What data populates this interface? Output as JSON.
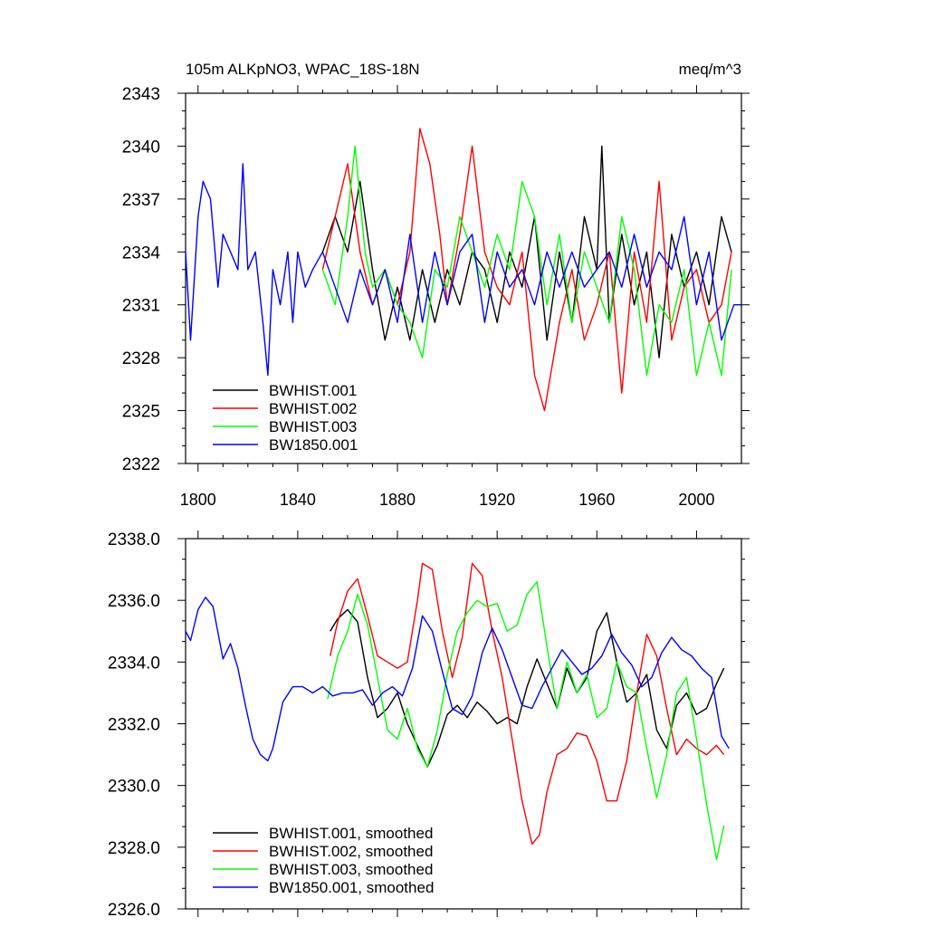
{
  "chart_data": [
    {
      "type": "line",
      "title": "105m ALKpNO3, WPAC_18S-18N",
      "units": "meq/m^3",
      "xlim": [
        1795,
        2018
      ],
      "ylim": [
        2322,
        2343
      ],
      "xticks": [
        1800,
        1840,
        1880,
        1920,
        1960,
        2000
      ],
      "yticks": [
        2322,
        2325,
        2328,
        2331,
        2334,
        2337,
        2340,
        2343
      ],
      "yticklabels": [
        "2322",
        "2325",
        "2328",
        "2331",
        "2334",
        "2337",
        "2340",
        "2343"
      ],
      "legend_position": "lower-left",
      "series": [
        {
          "name": "BWHIST.001",
          "color": "#000000",
          "x": [
            1850,
            1855,
            1860,
            1865,
            1870,
            1875,
            1880,
            1885,
            1890,
            1895,
            1900,
            1905,
            1910,
            1915,
            1920,
            1925,
            1930,
            1935,
            1940,
            1945,
            1950,
            1955,
            1960,
            1962,
            1965,
            1970,
            1975,
            1980,
            1985,
            1990,
            1995,
            2000,
            2005,
            2010,
            2014
          ],
          "y": [
            2334,
            2336,
            2334,
            2338,
            2333,
            2329,
            2332,
            2329,
            2333,
            2330,
            2333,
            2331,
            2334,
            2333,
            2330,
            2334,
            2332,
            2336,
            2329,
            2334,
            2330,
            2336,
            2333,
            2340,
            2330,
            2335,
            2331,
            2334,
            2328,
            2335,
            2332,
            2334,
            2331,
            2336,
            2334
          ]
        },
        {
          "name": "BWHIST.002",
          "color": "#ff0000",
          "x": [
            1850,
            1855,
            1860,
            1865,
            1870,
            1875,
            1880,
            1885,
            1889,
            1893,
            1897,
            1900,
            1905,
            1910,
            1915,
            1920,
            1925,
            1930,
            1935,
            1939,
            1945,
            1950,
            1955,
            1960,
            1965,
            1970,
            1975,
            1980,
            1985,
            1990,
            1995,
            2000,
            2005,
            2010,
            2014
          ],
          "y": [
            2333,
            2336,
            2339,
            2334,
            2331,
            2333,
            2331,
            2334,
            2341,
            2339,
            2335,
            2331,
            2335,
            2340,
            2334,
            2332,
            2331,
            2334,
            2327,
            2325,
            2330,
            2333,
            2329,
            2331,
            2334,
            2326,
            2334,
            2330,
            2338,
            2329,
            2332,
            2333,
            2330,
            2331,
            2334
          ]
        },
        {
          "name": "BWHIST.003",
          "color": "#00ff00",
          "x": [
            1850,
            1855,
            1860,
            1863,
            1867,
            1870,
            1875,
            1880,
            1885,
            1890,
            1895,
            1900,
            1905,
            1910,
            1915,
            1920,
            1925,
            1930,
            1935,
            1940,
            1945,
            1950,
            1955,
            1960,
            1965,
            1970,
            1975,
            1980,
            1985,
            1990,
            1995,
            2000,
            2005,
            2010,
            2014
          ],
          "y": [
            2333,
            2331,
            2336,
            2340,
            2334,
            2332,
            2333,
            2331,
            2330,
            2328,
            2333,
            2332,
            2336,
            2334,
            2332,
            2335,
            2333,
            2338,
            2336,
            2331,
            2335,
            2330,
            2334,
            2332,
            2330,
            2336,
            2333,
            2327,
            2331,
            2330,
            2333,
            2327,
            2330,
            2327,
            2333
          ]
        },
        {
          "name": "BW1850.001",
          "color": "#0000ff",
          "x": [
            1795,
            1797,
            1800,
            1802,
            1805,
            1808,
            1810,
            1813,
            1816,
            1818,
            1820,
            1823,
            1826,
            1828,
            1830,
            1833,
            1836,
            1838,
            1840,
            1843,
            1846,
            1850,
            1855,
            1860,
            1865,
            1870,
            1875,
            1880,
            1885,
            1890,
            1895,
            1900,
            1905,
            1910,
            1915,
            1920,
            1925,
            1930,
            1935,
            1940,
            1945,
            1950,
            1955,
            1960,
            1965,
            1970,
            1975,
            1980,
            1985,
            1990,
            1995,
            2000,
            2005,
            2010,
            2015,
            2018
          ],
          "y": [
            2334,
            2329,
            2336,
            2338,
            2337,
            2332,
            2335,
            2334,
            2333,
            2339,
            2333,
            2334,
            2330,
            2327,
            2333,
            2331,
            2334,
            2330,
            2334,
            2332,
            2333,
            2334,
            2332,
            2330,
            2333,
            2331,
            2333,
            2330,
            2335,
            2330,
            2334,
            2331,
            2334,
            2335,
            2330,
            2334,
            2332,
            2333,
            2331,
            2334,
            2332,
            2334,
            2332,
            2333,
            2334,
            2332,
            2335,
            2332,
            2334,
            2333,
            2336,
            2331,
            2334,
            2329,
            2331,
            2331
          ]
        }
      ]
    },
    {
      "type": "line",
      "title": "",
      "xlim": [
        1795,
        2018
      ],
      "ylim": [
        2326.0,
        2338.0
      ],
      "xticks": [
        1800,
        1840,
        1880,
        1920,
        1960,
        2000
      ],
      "yticks": [
        2326.0,
        2328.0,
        2330.0,
        2332.0,
        2334.0,
        2336.0,
        2338.0
      ],
      "yticklabels": [
        "2326.0",
        "2328.0",
        "2330.0",
        "2332.0",
        "2334.0",
        "2336.0",
        "2338.0"
      ],
      "legend_position": "lower-left",
      "series": [
        {
          "name": "BWHIST.001, smoothed",
          "color": "#000000",
          "x": [
            1853,
            1856,
            1860,
            1864,
            1868,
            1872,
            1876,
            1880,
            1884,
            1888,
            1892,
            1896,
            1900,
            1904,
            1908,
            1912,
            1916,
            1920,
            1924,
            1928,
            1932,
            1936,
            1940,
            1944,
            1948,
            1952,
            1956,
            1960,
            1964,
            1968,
            1972,
            1976,
            1980,
            1984,
            1988,
            1992,
            1996,
            2000,
            2004,
            2008,
            2011
          ],
          "y": [
            2335.0,
            2335.4,
            2335.7,
            2335.3,
            2333.5,
            2332.2,
            2332.5,
            2333.0,
            2332.0,
            2331.3,
            2330.6,
            2331.3,
            2332.3,
            2332.6,
            2332.2,
            2332.7,
            2332.4,
            2332.0,
            2332.2,
            2332.0,
            2333.2,
            2334.1,
            2333.3,
            2332.5,
            2333.8,
            2333.0,
            2333.5,
            2335.0,
            2335.6,
            2334.0,
            2332.7,
            2333.0,
            2333.6,
            2331.8,
            2331.2,
            2332.6,
            2333.0,
            2332.3,
            2332.5,
            2333.3,
            2333.8
          ]
        },
        {
          "name": "BWHIST.002, smoothed",
          "color": "#ff0000",
          "x": [
            1853,
            1856,
            1860,
            1864,
            1868,
            1872,
            1876,
            1880,
            1884,
            1888,
            1890,
            1894,
            1898,
            1902,
            1906,
            1910,
            1914,
            1918,
            1922,
            1926,
            1930,
            1934,
            1937,
            1940,
            1944,
            1948,
            1952,
            1956,
            1960,
            1964,
            1968,
            1972,
            1976,
            1980,
            1984,
            1988,
            1992,
            1996,
            2000,
            2004,
            2008,
            2011
          ],
          "y": [
            2334.2,
            2335.3,
            2336.3,
            2336.7,
            2335.5,
            2334.2,
            2334.0,
            2333.8,
            2334.0,
            2336.0,
            2337.2,
            2337.0,
            2335.0,
            2333.5,
            2334.8,
            2337.2,
            2336.8,
            2335.0,
            2333.5,
            2331.5,
            2329.5,
            2328.1,
            2328.4,
            2329.8,
            2331.0,
            2331.2,
            2331.7,
            2331.6,
            2330.8,
            2329.5,
            2329.5,
            2330.8,
            2333.0,
            2334.9,
            2334.2,
            2332.5,
            2331.0,
            2331.5,
            2331.2,
            2331.0,
            2331.3,
            2331.0
          ]
        },
        {
          "name": "BWHIST.003, smoothed",
          "color": "#00ff00",
          "x": [
            1852,
            1856,
            1860,
            1864,
            1868,
            1872,
            1876,
            1880,
            1884,
            1888,
            1892,
            1896,
            1900,
            1904,
            1908,
            1912,
            1916,
            1920,
            1924,
            1928,
            1932,
            1936,
            1940,
            1944,
            1948,
            1952,
            1956,
            1960,
            1964,
            1968,
            1972,
            1976,
            1980,
            1984,
            1988,
            1992,
            1996,
            2000,
            2004,
            2008,
            2011
          ],
          "y": [
            2332.8,
            2334.2,
            2335.0,
            2336.2,
            2335.2,
            2333.5,
            2331.8,
            2331.5,
            2332.5,
            2331.2,
            2330.6,
            2331.8,
            2333.6,
            2335.0,
            2335.6,
            2336.0,
            2335.8,
            2335.9,
            2335.0,
            2335.2,
            2336.2,
            2336.6,
            2334.5,
            2332.5,
            2334.0,
            2333.0,
            2333.6,
            2332.2,
            2332.5,
            2334.0,
            2333.2,
            2333.0,
            2331.2,
            2329.6,
            2331.0,
            2333.0,
            2333.5,
            2331.5,
            2329.4,
            2327.6,
            2328.7
          ]
        },
        {
          "name": "BW1850.001, smoothed",
          "color": "#0000ff",
          "x": [
            1795,
            1797,
            1800,
            1803,
            1806,
            1810,
            1813,
            1816,
            1819,
            1822,
            1825,
            1828,
            1830,
            1834,
            1838,
            1842,
            1846,
            1850,
            1854,
            1858,
            1862,
            1866,
            1870,
            1874,
            1878,
            1882,
            1886,
            1890,
            1894,
            1898,
            1902,
            1906,
            1910,
            1914,
            1918,
            1922,
            1926,
            1930,
            1934,
            1938,
            1942,
            1946,
            1950,
            1954,
            1958,
            1962,
            1966,
            1970,
            1974,
            1978,
            1982,
            1986,
            1990,
            1994,
            1998,
            2002,
            2006,
            2010,
            2013
          ],
          "y": [
            2335.0,
            2334.7,
            2335.7,
            2336.1,
            2335.8,
            2334.1,
            2334.6,
            2333.8,
            2332.6,
            2331.5,
            2331.0,
            2330.8,
            2331.2,
            2332.7,
            2333.2,
            2333.2,
            2333.0,
            2333.2,
            2332.9,
            2333.0,
            2333.0,
            2333.1,
            2332.6,
            2333.0,
            2333.2,
            2332.9,
            2333.8,
            2335.5,
            2335.0,
            2333.7,
            2332.5,
            2332.3,
            2332.9,
            2334.3,
            2335.1,
            2334.4,
            2333.5,
            2332.6,
            2332.5,
            2333.2,
            2333.8,
            2334.4,
            2334.0,
            2333.6,
            2333.8,
            2334.2,
            2334.9,
            2334.3,
            2333.9,
            2333.2,
            2333.5,
            2334.3,
            2334.8,
            2334.4,
            2334.2,
            2333.8,
            2333.5,
            2331.6,
            2331.2
          ]
        }
      ]
    }
  ]
}
